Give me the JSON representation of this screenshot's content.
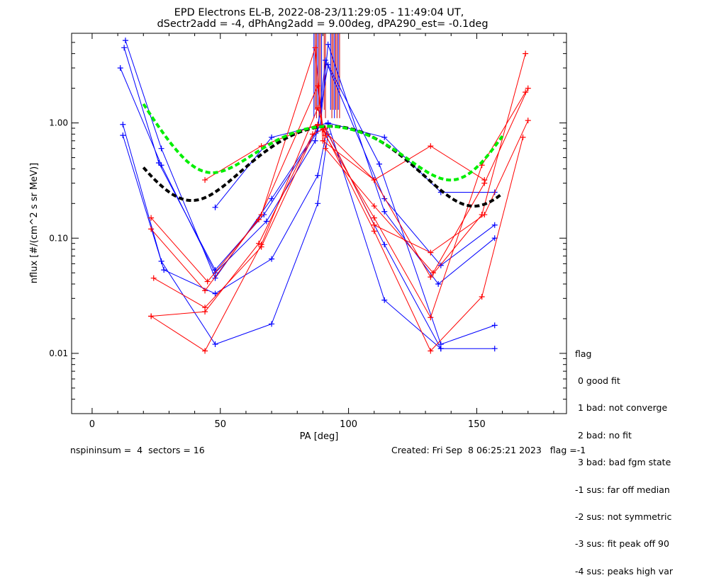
{
  "chart_data": {
    "type": "line",
    "title": "EPD Electrons EL-B, 2022-08-23/11:29:05 - 11:49:04 UT,",
    "subtitle": "dSectr2add = -4, dPhAng2add = 9.00deg, dPA290_est=  -0.1deg",
    "xlabel": "PA [deg]",
    "ylabel": "nflux [#/(cm^2 s sr MeV)]",
    "xlim": [
      -8,
      185
    ],
    "ylim": [
      0.003,
      6.0
    ],
    "yscale": "log",
    "xticks": [
      0,
      50,
      100,
      150
    ],
    "yticks": [
      {
        "value": 0.01,
        "label": "0.01"
      },
      {
        "value": 0.1,
        "label": "0.10"
      },
      {
        "value": 1.0,
        "label": "1.00"
      }
    ],
    "grid": false,
    "series": [
      {
        "color": "#0000ff",
        "x": [
          12.5,
          26,
          48,
          67,
          88,
          91,
          114,
          136,
          157
        ],
        "y": [
          4.5,
          0.45,
          0.053,
          0.16,
          0.85,
          3.5,
          0.22,
          0.058,
          0.13
        ]
      },
      {
        "color": "#0000ff",
        "x": [
          13,
          27,
          48,
          70,
          89,
          92,
          114,
          135,
          157
        ],
        "y": [
          5.2,
          0.6,
          0.045,
          0.22,
          0.95,
          4.8,
          0.17,
          0.04,
          0.1
        ]
      },
      {
        "color": "#0000ff",
        "x": [
          11,
          27,
          48,
          68,
          87,
          92,
          112,
          136,
          157
        ],
        "y": [
          3.0,
          0.43,
          0.05,
          0.14,
          0.7,
          3.2,
          0.44,
          0.012,
          0.0175
        ]
      },
      {
        "color": "#0000ff",
        "x": [
          12,
          27,
          48,
          70,
          88,
          92,
          114,
          136,
          157
        ],
        "y": [
          0.97,
          0.063,
          0.012,
          0.018,
          0.2,
          0.8,
          0.088,
          0.011,
          0.011
        ]
      },
      {
        "color": "#0000ff",
        "x": [
          12,
          28,
          48,
          70,
          88,
          92,
          114,
          136
        ],
        "y": [
          0.78,
          0.053,
          0.033,
          0.066,
          0.35,
          0.98,
          0.029,
          0.011
        ]
      },
      {
        "color": "#0000ff",
        "x": [
          48,
          70,
          92,
          114,
          136,
          157
        ],
        "y": [
          0.185,
          0.75,
          1.0,
          0.75,
          0.25,
          0.25
        ]
      },
      {
        "color": "#ff0000",
        "x": [
          23,
          44,
          66,
          87,
          90,
          110,
          132,
          152,
          169
        ],
        "y": [
          0.12,
          0.035,
          0.16,
          4.5,
          0.7,
          0.32,
          0.046,
          0.16,
          4.0
        ]
      },
      {
        "color": "#ff0000",
        "x": [
          23,
          45,
          65,
          88,
          91,
          110,
          133,
          153,
          170
        ],
        "y": [
          0.15,
          0.042,
          0.145,
          2.1,
          0.6,
          0.19,
          0.05,
          0.3,
          2.0
        ]
      },
      {
        "color": "#ff0000",
        "x": [
          23,
          44,
          66,
          88,
          91,
          110,
          132,
          152,
          169
        ],
        "y": [
          0.021,
          0.0105,
          0.088,
          1.35,
          0.78,
          0.15,
          0.0205,
          0.43,
          1.85
        ]
      },
      {
        "color": "#ff0000",
        "x": [
          24,
          44,
          66,
          88,
          91,
          110,
          132,
          153,
          170
        ],
        "y": [
          0.045,
          0.025,
          0.084,
          0.95,
          0.9,
          0.13,
          0.075,
          0.16,
          1.05
        ]
      },
      {
        "color": "#ff0000",
        "x": [
          23,
          44,
          65,
          86,
          90,
          110,
          132,
          152,
          168
        ],
        "y": [
          0.021,
          0.023,
          0.09,
          0.8,
          0.88,
          0.115,
          0.0105,
          0.031,
          0.75
        ]
      },
      {
        "color": "#ff0000",
        "x": [
          44,
          66,
          88,
          110,
          132,
          153
        ],
        "y": [
          0.32,
          0.63,
          0.97,
          0.32,
          0.63,
          0.32
        ]
      }
    ],
    "fits": [
      {
        "color": "#000000",
        "x0": 20,
        "x1": 160,
        "amp": 0.88,
        "base": 0.052,
        "center": 93,
        "width": 24,
        "edge_amp": 0.35,
        "edge_width": 14
      },
      {
        "color": "#00ee00",
        "x0": 20,
        "x1": 160,
        "amp": 0.88,
        "base": 0.048,
        "center": 92,
        "width": 25,
        "edge_amp": 1.4,
        "edge_width": 12
      }
    ],
    "spike_x": [
      86.5,
      87,
      87.5,
      88,
      88.5,
      89,
      89.5,
      90.5,
      91,
      93,
      93.5,
      94,
      94.5,
      95,
      95.5,
      96,
      96.5
    ]
  },
  "legend": {
    "title": "flag",
    "items": [
      " 0 good fit",
      " 1 bad: not converge",
      " 2 bad: no fit",
      " 3 bad: bad fgm state",
      "-1 sus: far off median",
      "-2 sus: not symmetric",
      "-3 sus: fit peak off 90",
      "-4 sus: peaks high var"
    ]
  },
  "footer": {
    "left": "nspininsum =  4  sectors = 16",
    "right": "Created: Fri Sep  8 06:25:21 2023   flag =-1"
  }
}
